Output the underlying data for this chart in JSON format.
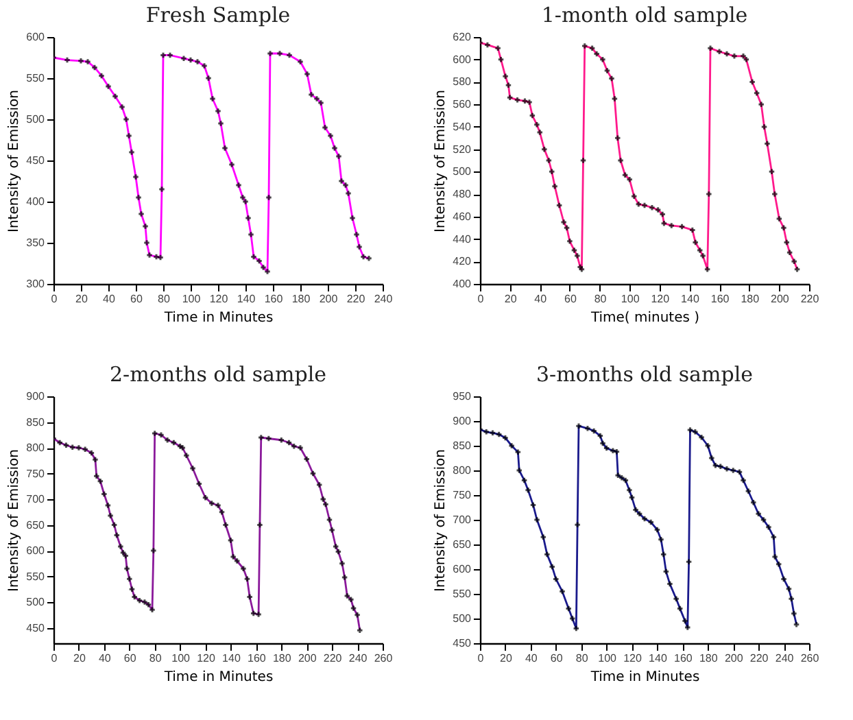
{
  "chart_data": [
    {
      "type": "line",
      "title": "Fresh Sample",
      "xlabel": "Time in Minutes",
      "ylabel": "Intensity of Emission",
      "xlim": [
        0,
        240
      ],
      "ylim": [
        300,
        600
      ],
      "xticks": [
        0,
        20,
        40,
        60,
        80,
        100,
        120,
        140,
        160,
        180,
        200,
        220,
        240
      ],
      "yticks": [
        300,
        350,
        400,
        450,
        500,
        550,
        600
      ],
      "grid": false,
      "legend": false,
      "marker": "cross",
      "line_style": "solid",
      "x": [
        0,
        10,
        20,
        25,
        30,
        35,
        40,
        45,
        50,
        53,
        55,
        57,
        60,
        62,
        64,
        67,
        68,
        70,
        75,
        78,
        79,
        80,
        85,
        95,
        100,
        105,
        110,
        113,
        116,
        120,
        122,
        125,
        130,
        135,
        138,
        140,
        142,
        144,
        146,
        150,
        153,
        156,
        157,
        158,
        165,
        172,
        180,
        185,
        188,
        192,
        195,
        198,
        202,
        205,
        208,
        210,
        213,
        215,
        218,
        221,
        223,
        226,
        230
      ],
      "series": [
        {
          "color": "#ff00ff",
          "values": [
            575,
            572,
            571,
            570,
            563,
            553,
            540,
            528,
            515,
            500,
            480,
            460,
            430,
            405,
            385,
            370,
            350,
            335,
            333,
            332,
            415,
            578,
            578,
            574,
            572,
            570,
            565,
            550,
            525,
            510,
            495,
            465,
            445,
            420,
            405,
            400,
            380,
            360,
            333,
            328,
            320,
            315,
            405,
            580,
            580,
            578,
            570,
            555,
            530,
            525,
            520,
            490,
            480,
            465,
            455,
            425,
            420,
            410,
            380,
            360,
            345,
            333,
            331
          ]
        }
      ]
    },
    {
      "type": "line",
      "title": "1-month old sample",
      "xlabel": "Time( minutes )",
      "ylabel": "Intensity of Emission",
      "xlim": [
        0,
        220
      ],
      "ylim": [
        400,
        620
      ],
      "xticks": [
        0,
        20,
        40,
        60,
        80,
        100,
        120,
        140,
        160,
        180,
        200,
        220
      ],
      "yticks": [
        400,
        420,
        440,
        460,
        480,
        500,
        520,
        540,
        560,
        580,
        600,
        620
      ],
      "grid": false,
      "legend": false,
      "marker": "cross",
      "line_style": "solid",
      "x": [
        0,
        5,
        12,
        14,
        17,
        19,
        20,
        25,
        30,
        33,
        35,
        38,
        40,
        43,
        46,
        48,
        50,
        53,
        56,
        58,
        60,
        63,
        65,
        67,
        68,
        69,
        70,
        75,
        78,
        82,
        85,
        88,
        90,
        92,
        94,
        97,
        100,
        103,
        106,
        110,
        115,
        119,
        122,
        123,
        128,
        135,
        142,
        144,
        147,
        149,
        152,
        153,
        154,
        160,
        165,
        170,
        176,
        178,
        182,
        185,
        188,
        190,
        192,
        195,
        197,
        200,
        203,
        205,
        207,
        210,
        212
      ],
      "series": [
        {
          "color": "#ff1a8c",
          "values": [
            615,
            613,
            610,
            600,
            585,
            577,
            566,
            564,
            563,
            562,
            550,
            542,
            535,
            520,
            510,
            500,
            487,
            470,
            455,
            450,
            438,
            430,
            425,
            415,
            413,
            510,
            612,
            610,
            605,
            600,
            590,
            583,
            565,
            530,
            510,
            497,
            493,
            478,
            471,
            470,
            468,
            466,
            462,
            454,
            452,
            451,
            448,
            437,
            430,
            425,
            413,
            480,
            610,
            607,
            605,
            603,
            603,
            600,
            580,
            570,
            560,
            540,
            525,
            500,
            480,
            458,
            450,
            437,
            428,
            420,
            413
          ]
        }
      ]
    },
    {
      "type": "line",
      "title": "2-months old sample",
      "xlabel": "Time in Minutes",
      "ylabel": "Intensity of Emission",
      "xlim": [
        0,
        260
      ],
      "ylim": [
        420,
        900
      ],
      "xticks": [
        0,
        20,
        40,
        60,
        80,
        100,
        120,
        140,
        160,
        180,
        200,
        220,
        240,
        260
      ],
      "yticks": [
        450,
        500,
        550,
        600,
        650,
        700,
        750,
        800,
        850,
        900
      ],
      "grid": false,
      "legend": false,
      "marker": "cross",
      "line_style": "solid",
      "x": [
        0,
        5,
        10,
        15,
        20,
        25,
        30,
        33,
        34,
        37,
        40,
        43,
        45,
        48,
        50,
        53,
        55,
        57,
        58,
        60,
        62,
        64,
        68,
        72,
        75,
        78,
        79,
        80,
        85,
        90,
        95,
        100,
        102,
        105,
        110,
        115,
        120,
        125,
        130,
        133,
        136,
        140,
        142,
        145,
        150,
        153,
        155,
        158,
        162,
        163,
        164,
        170,
        180,
        186,
        190,
        195,
        200,
        205,
        210,
        213,
        215,
        218,
        220,
        223,
        225,
        228,
        230,
        232,
        235,
        237,
        240,
        242
      ],
      "series": [
        {
          "color": "#8b1a9b",
          "values": [
            818,
            810,
            805,
            801,
            800,
            797,
            790,
            777,
            745,
            735,
            710,
            688,
            668,
            650,
            630,
            608,
            596,
            590,
            565,
            545,
            525,
            510,
            503,
            500,
            495,
            485,
            600,
            828,
            825,
            815,
            810,
            803,
            800,
            785,
            760,
            730,
            703,
            692,
            688,
            675,
            650,
            620,
            588,
            580,
            565,
            545,
            510,
            478,
            476,
            650,
            820,
            818,
            815,
            810,
            803,
            800,
            778,
            750,
            728,
            700,
            690,
            660,
            640,
            608,
            598,
            575,
            548,
            512,
            505,
            488,
            475,
            445
          ]
        }
      ]
    },
    {
      "type": "line",
      "title": "3-months old sample",
      "xlabel": "Time in Minutes",
      "ylabel": "Intensity of Emission",
      "xlim": [
        0,
        260
      ],
      "ylim": [
        450,
        950
      ],
      "xticks": [
        0,
        20,
        40,
        60,
        80,
        100,
        120,
        140,
        160,
        180,
        200,
        220,
        240,
        260
      ],
      "yticks": [
        450,
        500,
        550,
        600,
        650,
        700,
        750,
        800,
        850,
        900,
        950
      ],
      "grid": false,
      "legend": false,
      "marker": "cross",
      "line_style": "solid",
      "x": [
        0,
        5,
        10,
        15,
        20,
        25,
        30,
        31,
        35,
        38,
        42,
        45,
        50,
        53,
        57,
        60,
        65,
        70,
        73,
        76,
        77,
        78,
        85,
        90,
        95,
        97,
        100,
        105,
        108,
        109,
        112,
        115,
        118,
        120,
        123,
        126,
        130,
        135,
        140,
        143,
        145,
        147,
        150,
        155,
        158,
        162,
        164,
        165,
        166,
        170,
        175,
        180,
        183,
        186,
        190,
        195,
        200,
        205,
        208,
        212,
        216,
        220,
        224,
        228,
        232,
        233,
        236,
        240,
        244,
        246,
        248,
        250
      ],
      "series": [
        {
          "color": "#1a1a8c",
          "values": [
            883,
            878,
            876,
            873,
            866,
            850,
            837,
            800,
            780,
            760,
            730,
            700,
            665,
            630,
            605,
            580,
            555,
            520,
            500,
            480,
            690,
            890,
            885,
            880,
            870,
            855,
            845,
            840,
            838,
            790,
            785,
            780,
            760,
            745,
            720,
            712,
            702,
            695,
            680,
            660,
            630,
            595,
            570,
            540,
            520,
            495,
            482,
            615,
            882,
            878,
            867,
            850,
            825,
            810,
            808,
            803,
            800,
            797,
            780,
            758,
            735,
            712,
            700,
            685,
            665,
            625,
            610,
            580,
            560,
            540,
            510,
            488
          ]
        }
      ]
    }
  ]
}
